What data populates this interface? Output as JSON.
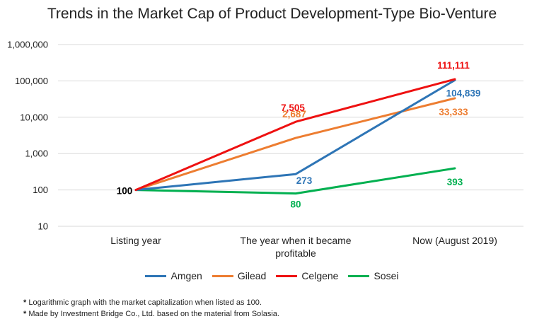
{
  "chart_data": {
    "type": "line",
    "title": "Trends in the Market Cap of Product Development-Type Bio-Venture",
    "categories": [
      "Listing year",
      "The year when it became profitable",
      "Now (August 2019)"
    ],
    "yscale": "log",
    "ylim": [
      10,
      1000000
    ],
    "yticks": [
      "10",
      "100",
      "1,000",
      "10,000",
      "100,000",
      "1,000,000"
    ],
    "grid": true,
    "legend": "bottom",
    "series": [
      {
        "name": "Amgen",
        "color": "#2E75B6",
        "values": [
          100,
          273,
          104839
        ],
        "labels": [
          "",
          "273",
          "104,839"
        ]
      },
      {
        "name": "Gilead",
        "color": "#ED7D31",
        "values": [
          100,
          2687,
          33333
        ],
        "labels": [
          "",
          "2,687",
          "33,333"
        ]
      },
      {
        "name": "Celgene",
        "color": "#EE1111",
        "values": [
          100,
          7505,
          111111
        ],
        "labels": [
          "",
          "7,505",
          "111,111"
        ]
      },
      {
        "name": "Sosei",
        "color": "#00B050",
        "values": [
          100,
          80,
          393
        ],
        "labels": [
          "",
          "80",
          "393"
        ]
      }
    ],
    "start_label": "100"
  },
  "footnotes": [
    "Logarithmic graph with the market capitalization when listed as 100.",
    " Made by Investment Bridge Co., Ltd. based on the material from Solasia."
  ],
  "footnote_marks": [
    "*",
    "*"
  ]
}
